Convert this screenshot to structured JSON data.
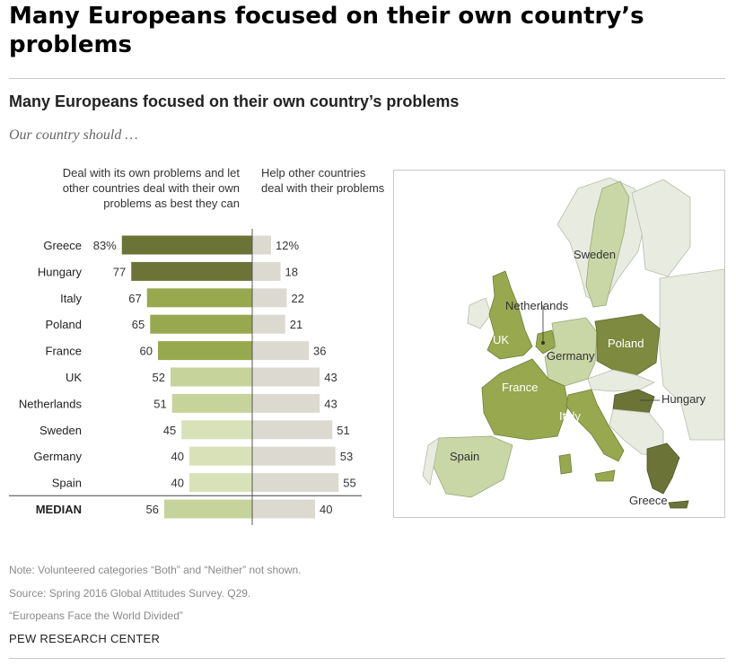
{
  "page": {
    "title": "Many Europeans focused on their own country’s problems"
  },
  "header": {
    "title": "Many Europeans focused on their own country’s problems",
    "subtitle": "Our country should …"
  },
  "columns": {
    "left": "Deal with its own problems and let other countries deal with their own problems as best they can",
    "right": "Help other countries deal with their problems"
  },
  "colors": {
    "dark": "#6b7436",
    "mid": "#98a84e",
    "light": "#c6d39b",
    "lighter": "#d8e1b8",
    "neutral": "#dcdad0",
    "divider": "#555555"
  },
  "chart_data": {
    "type": "bar",
    "categories": [
      "Greece",
      "Hungary",
      "Italy",
      "Poland",
      "France",
      "UK",
      "Netherlands",
      "Sweden",
      "Germany",
      "Spain"
    ],
    "series": [
      {
        "name": "Deal with its own problems and let other countries deal with their own problems as best they can",
        "values": [
          83,
          77,
          67,
          65,
          60,
          52,
          51,
          45,
          40,
          40
        ],
        "labels": [
          "83%",
          "77",
          "67",
          "65",
          "60",
          "52",
          "51",
          "45",
          "40",
          "40"
        ]
      },
      {
        "name": "Help other countries deal with their problems",
        "values": [
          12,
          18,
          22,
          21,
          36,
          43,
          43,
          51,
          53,
          55
        ],
        "labels": [
          "12%",
          "18",
          "22",
          "21",
          "36",
          "43",
          "43",
          "51",
          "53",
          "55"
        ]
      }
    ],
    "median": {
      "label": "MEDIAN",
      "values": [
        56,
        40
      ],
      "labels": [
        "56",
        "40"
      ]
    },
    "title": "Many Europeans focused on their own country’s problems",
    "subtitle": "Our country should …"
  },
  "map": {
    "labels": [
      "Sweden",
      "Netherlands",
      "UK",
      "Germany",
      "Poland",
      "France",
      "Hungary",
      "Italy",
      "Spain",
      "Greece"
    ]
  },
  "footer": {
    "note": "Note: Volunteered categories “Both” and “Neither” not shown.",
    "source": "Source: Spring 2016 Global Attitudes Survey. Q29.",
    "report": "“Europeans Face the World Divided”",
    "credit": "PEW RESEARCH CENTER"
  }
}
